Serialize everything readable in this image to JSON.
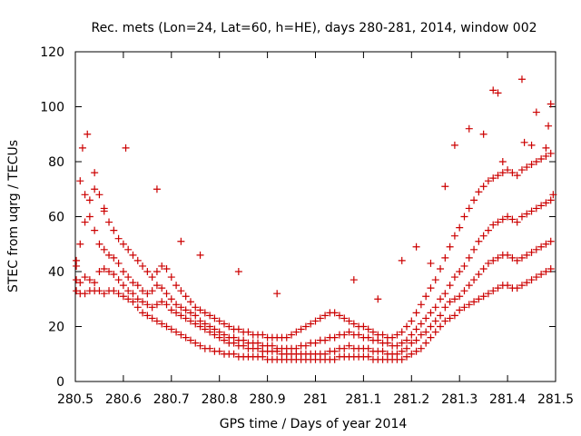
{
  "chart_data": {
    "type": "scatter",
    "title": "Rec. mets (Lon=24, Lat=60, h=HE), days 280-281, 2014, window 002",
    "xlabel": "GPS time / Days of year 2014",
    "ylabel": "STEC from uqrg / TECUs",
    "xlim": [
      280.5,
      281.5
    ],
    "ylim": [
      0,
      120
    ],
    "xticks": [
      "280.5",
      "280.6",
      "280.7",
      "280.8",
      "280.9",
      "281",
      "281.1",
      "281.2",
      "281.3",
      "281.4",
      "281.5"
    ],
    "yticks": [
      "0",
      "20",
      "40",
      "60",
      "80",
      "100",
      "120"
    ],
    "grid": false,
    "marker_color": "#cc0000",
    "marker": "plus",
    "series": [
      {
        "x": [
          280.502,
          280.51,
          280.52,
          280.53,
          280.54,
          280.55,
          280.56,
          280.57,
          280.58,
          280.59,
          280.6,
          280.61,
          280.62,
          280.63,
          280.64,
          280.65,
          280.66,
          280.67,
          280.68,
          280.69,
          280.7,
          280.71,
          280.72,
          280.73,
          280.74,
          280.75,
          280.76,
          280.77,
          280.78,
          280.79,
          280.8,
          280.81,
          280.82,
          280.83,
          280.84,
          280.85,
          280.86,
          280.87,
          280.88,
          280.89,
          280.9,
          280.91,
          280.92,
          280.93,
          280.94,
          280.95,
          280.96,
          280.97,
          280.98,
          280.99,
          281.0,
          281.01,
          281.02,
          281.03,
          281.04,
          281.05,
          281.06,
          281.07,
          281.08,
          281.09,
          281.1,
          281.11,
          281.12,
          281.13,
          281.14,
          281.15,
          281.16,
          281.17,
          281.18,
          281.19,
          281.2,
          281.21,
          281.22,
          281.23,
          281.24,
          281.25,
          281.26,
          281.27,
          281.28,
          281.29,
          281.3,
          281.31,
          281.32,
          281.33,
          281.34,
          281.35,
          281.36,
          281.37,
          281.38,
          281.39,
          281.4,
          281.41,
          281.42,
          281.43,
          281.44,
          281.45,
          281.46,
          281.47,
          281.48,
          281.49
        ],
        "y": [
          33,
          32,
          32,
          33,
          33,
          33,
          32,
          33,
          33,
          32,
          31,
          30,
          29,
          27,
          25,
          24,
          23,
          22,
          21,
          20,
          19,
          18,
          17,
          16,
          15,
          14,
          13,
          12,
          12,
          11,
          11,
          10,
          10,
          10,
          9,
          9,
          9,
          9,
          9,
          9,
          8,
          8,
          8,
          8,
          8,
          8,
          8,
          8,
          8,
          8,
          8,
          8,
          8,
          8,
          8,
          9,
          9,
          9,
          9,
          9,
          9,
          9,
          8,
          8,
          8,
          8,
          8,
          8,
          8,
          9,
          10,
          11,
          12,
          14,
          16,
          18,
          20,
          22,
          23,
          24,
          26,
          27,
          28,
          29,
          30,
          31,
          32,
          33,
          34,
          35,
          35,
          34,
          34,
          35,
          36,
          37,
          38,
          39,
          40,
          41
        ]
      },
      {
        "x": [
          280.502,
          280.51,
          280.52,
          280.53,
          280.54,
          280.55,
          280.56,
          280.57,
          280.58,
          280.59,
          280.6,
          280.61,
          280.62,
          280.63,
          280.64,
          280.65,
          280.66,
          280.67,
          280.68,
          280.69,
          280.7,
          280.71,
          280.72,
          280.73,
          280.74,
          280.75,
          280.76,
          280.77,
          280.78,
          280.79,
          280.8,
          280.81,
          280.82,
          280.83,
          280.84,
          280.85,
          280.86,
          280.87,
          280.88,
          280.89,
          280.9,
          280.91,
          280.92,
          280.93,
          280.94,
          280.95,
          280.96,
          280.97,
          280.98,
          280.99,
          281.0,
          281.01,
          281.02,
          281.03,
          281.04,
          281.05,
          281.06,
          281.07,
          281.08,
          281.09,
          281.1,
          281.11,
          281.12,
          281.13,
          281.14,
          281.15,
          281.16,
          281.17,
          281.18,
          281.19,
          281.2,
          281.21,
          281.22,
          281.23,
          281.24,
          281.25,
          281.26,
          281.27,
          281.28,
          281.29,
          281.3,
          281.31,
          281.32,
          281.33,
          281.34,
          281.35,
          281.36,
          281.37,
          281.38,
          281.39,
          281.4,
          281.41,
          281.42,
          281.43,
          281.44,
          281.45,
          281.46,
          281.47,
          281.48,
          281.49
        ],
        "y": [
          37,
          36,
          38,
          37,
          36,
          40,
          41,
          40,
          39,
          37,
          35,
          33,
          32,
          30,
          29,
          28,
          27,
          28,
          29,
          28,
          26,
          25,
          24,
          23,
          22,
          21,
          20,
          19,
          18,
          17,
          16,
          15,
          14,
          14,
          13,
          13,
          12,
          12,
          12,
          11,
          11,
          11,
          11,
          10,
          10,
          10,
          10,
          10,
          10,
          10,
          10,
          10,
          10,
          11,
          11,
          12,
          12,
          13,
          12,
          12,
          12,
          12,
          11,
          11,
          11,
          10,
          10,
          10,
          11,
          12,
          14,
          15,
          17,
          18,
          20,
          22,
          24,
          27,
          29,
          30,
          31,
          33,
          35,
          37,
          39,
          41,
          43,
          44,
          45,
          46,
          46,
          45,
          44,
          45,
          46,
          47,
          48,
          49,
          50,
          51
        ]
      },
      {
        "x": [
          280.502,
          280.51,
          280.52,
          280.53,
          280.54,
          280.55,
          280.56,
          280.57,
          280.58,
          280.59,
          280.6,
          280.61,
          280.62,
          280.63,
          280.64,
          280.65,
          280.66,
          280.67,
          280.68,
          280.69,
          280.7,
          280.71,
          280.72,
          280.73,
          280.74,
          280.75,
          280.76,
          280.77,
          280.78,
          280.79,
          280.8,
          280.81,
          280.82,
          280.83,
          280.84,
          280.85,
          280.86,
          280.87,
          280.88,
          280.89,
          280.9,
          280.91,
          280.92,
          280.93,
          280.94,
          280.95,
          280.96,
          280.97,
          280.98,
          280.99,
          281.0,
          281.01,
          281.02,
          281.03,
          281.04,
          281.05,
          281.06,
          281.07,
          281.08,
          281.09,
          281.1,
          281.11,
          281.12,
          281.13,
          281.14,
          281.15,
          281.16,
          281.17,
          281.18,
          281.19,
          281.2,
          281.21,
          281.22,
          281.23,
          281.24,
          281.25,
          281.26,
          281.27,
          281.28,
          281.29,
          281.3,
          281.31,
          281.32,
          281.33,
          281.34,
          281.35,
          281.36,
          281.37,
          281.38,
          281.39,
          281.4,
          281.41,
          281.42,
          281.43,
          281.44,
          281.45,
          281.46,
          281.47,
          281.48,
          281.49
        ],
        "y": [
          44,
          50,
          58,
          60,
          55,
          50,
          48,
          46,
          45,
          43,
          40,
          38,
          36,
          35,
          33,
          32,
          33,
          35,
          34,
          32,
          30,
          28,
          27,
          26,
          25,
          24,
          22,
          21,
          20,
          19,
          18,
          17,
          16,
          16,
          15,
          15,
          14,
          14,
          14,
          13,
          13,
          13,
          12,
          12,
          12,
          12,
          12,
          13,
          13,
          14,
          14,
          15,
          15,
          16,
          16,
          17,
          17,
          18,
          17,
          17,
          16,
          16,
          15,
          15,
          14,
          14,
          13,
          13,
          14,
          15,
          17,
          19,
          21,
          23,
          25,
          27,
          30,
          32,
          35,
          38,
          40,
          42,
          45,
          48,
          51,
          53,
          55,
          57,
          58,
          59,
          60,
          59,
          58,
          60,
          61,
          62,
          63,
          64,
          65,
          66
        ]
      },
      {
        "x": [
          280.502,
          280.51,
          280.52,
          280.53,
          280.54,
          280.55,
          280.56,
          280.57,
          280.58,
          280.59,
          280.6,
          280.61,
          280.62,
          280.63,
          280.64,
          280.65,
          280.66,
          280.67,
          280.68,
          280.69,
          280.7,
          280.71,
          280.72,
          280.73,
          280.74,
          280.75,
          280.76,
          280.77,
          280.78,
          280.79,
          280.8,
          280.81,
          280.82,
          280.83,
          280.84,
          280.85,
          280.86,
          280.87,
          280.88,
          280.89,
          280.9,
          280.91,
          280.92,
          280.93,
          280.94,
          280.95,
          280.96,
          280.97,
          280.98,
          280.99,
          281.0,
          281.01,
          281.02,
          281.03,
          281.04,
          281.05,
          281.06,
          281.07,
          281.08,
          281.09,
          281.1,
          281.11,
          281.12,
          281.13,
          281.14,
          281.15,
          281.16,
          281.17,
          281.18,
          281.19,
          281.2,
          281.21,
          281.22,
          281.23,
          281.24,
          281.25,
          281.26,
          281.27,
          281.28,
          281.29,
          281.3,
          281.31,
          281.32,
          281.33,
          281.34,
          281.35,
          281.36,
          281.37,
          281.38,
          281.39,
          281.4,
          281.41,
          281.42,
          281.43,
          281.44,
          281.45,
          281.46,
          281.47,
          281.48,
          281.49
        ],
        "y": [
          42,
          73,
          68,
          66,
          70,
          68,
          62,
          58,
          55,
          52,
          50,
          48,
          46,
          44,
          42,
          40,
          38,
          40,
          42,
          41,
          38,
          35,
          33,
          31,
          29,
          27,
          26,
          25,
          24,
          23,
          22,
          21,
          20,
          19,
          19,
          18,
          18,
          17,
          17,
          17,
          16,
          16,
          16,
          16,
          16,
          17,
          18,
          19,
          20,
          21,
          22,
          23,
          24,
          25,
          25,
          24,
          23,
          22,
          21,
          20,
          20,
          19,
          18,
          17,
          17,
          16,
          16,
          17,
          18,
          20,
          22,
          25,
          28,
          31,
          34,
          37,
          41,
          45,
          49,
          53,
          56,
          60,
          63,
          66,
          69,
          71,
          73,
          74,
          75,
          76,
          77,
          76,
          75,
          77,
          78,
          79,
          80,
          81,
          82,
          83
        ]
      },
      {
        "x": [
          280.515,
          280.525,
          280.54,
          280.56,
          280.605,
          280.67,
          280.72,
          280.76,
          280.84,
          280.92,
          281.08,
          281.13,
          281.18,
          281.21,
          281.24,
          281.27,
          281.29,
          281.32,
          281.35,
          281.37,
          281.38,
          281.39,
          281.43,
          281.435,
          281.45,
          281.46,
          281.48,
          281.485,
          281.49,
          281.495
        ],
        "y": [
          85,
          90,
          76,
          63,
          85,
          70,
          51,
          46,
          40,
          32,
          37,
          30,
          44,
          49,
          43,
          71,
          86,
          92,
          90,
          106,
          105,
          80,
          110,
          87,
          86,
          98,
          85,
          93,
          101,
          68
        ]
      }
    ]
  }
}
